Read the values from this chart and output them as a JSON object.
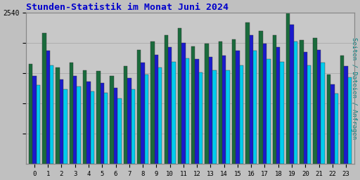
{
  "title": "Stunden-Statistik im Monat Juni 2024",
  "ylabel": "Seiten / Dateien / Anfragen",
  "xlabel_ticks": [
    0,
    1,
    2,
    3,
    4,
    5,
    6,
    7,
    8,
    9,
    10,
    11,
    12,
    13,
    14,
    15,
    16,
    17,
    18,
    19,
    20,
    21,
    22,
    23
  ],
  "background_color": "#c0c0c0",
  "plot_bg_color": "#c8c8c8",
  "title_color": "#0000cc",
  "ylabel_color": "#008080",
  "colors": [
    "#1a6b3c",
    "#1a1acc",
    "#00ccee"
  ],
  "seiten": [
    1680,
    2200,
    1620,
    1700,
    1580,
    1560,
    1480,
    1640,
    1920,
    2060,
    2160,
    2280,
    1980,
    2020,
    2060,
    2100,
    2380,
    2240,
    2160,
    2540,
    2080,
    2120,
    1500,
    1820
  ],
  "dateien": [
    1480,
    1900,
    1420,
    1480,
    1380,
    1360,
    1280,
    1440,
    1700,
    1840,
    1960,
    2040,
    1760,
    1800,
    1820,
    1900,
    2160,
    2020,
    1960,
    2340,
    1880,
    1920,
    1340,
    1640
  ],
  "anfragen": [
    1320,
    1660,
    1260,
    1300,
    1220,
    1200,
    1100,
    1260,
    1500,
    1620,
    1720,
    1780,
    1540,
    1580,
    1580,
    1660,
    1900,
    1760,
    1720,
    2060,
    1660,
    1700,
    1180,
    1460
  ],
  "ylim": [
    0,
    2540
  ],
  "yticks": [
    508,
    1016,
    1524,
    2032,
    2540
  ],
  "bar_width": 0.28
}
